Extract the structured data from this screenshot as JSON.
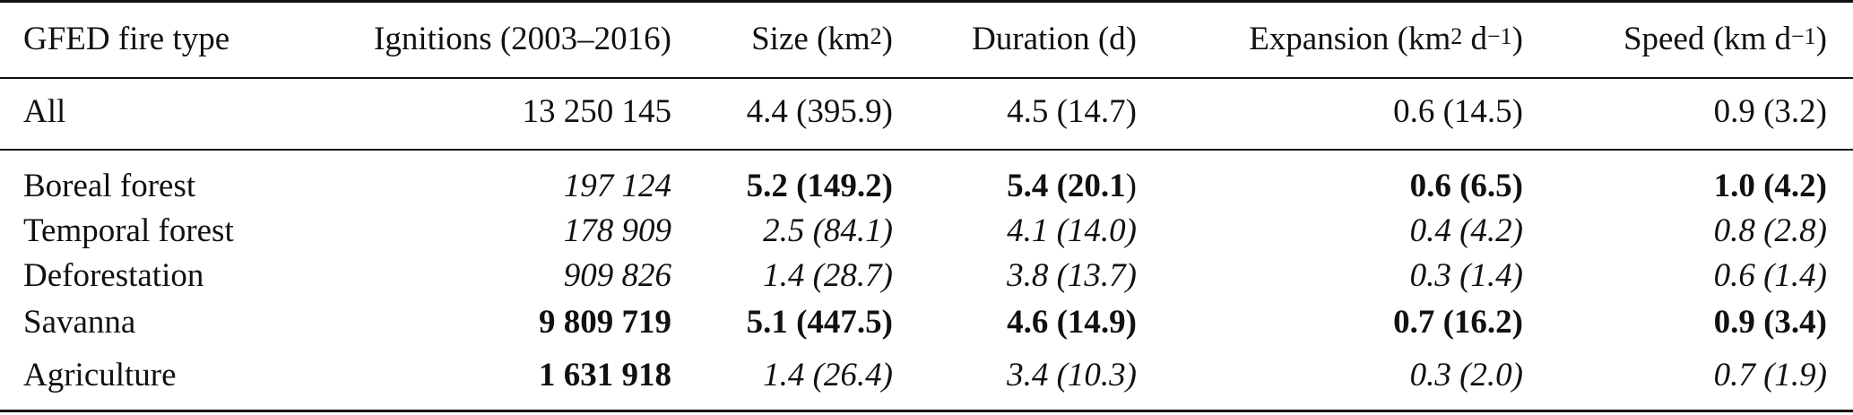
{
  "table": {
    "headers": {
      "fire_type": "GFED fire type",
      "ignitions": "Ignitions (2003–2016)",
      "size_prefix": "Size (km",
      "size_sup": "2",
      "size_suffix": ")",
      "duration": "Duration (d)",
      "expansion_prefix": "Expansion (km",
      "expansion_sup": "2",
      "expansion_mid": " d",
      "expansion_sup2": "−1",
      "expansion_suffix": ")",
      "speed_prefix": "Speed (km d",
      "speed_sup": "−1",
      "speed_suffix": ")"
    },
    "all_row": {
      "label": "All",
      "ignitions": "13 250 145",
      "size": "4.4 (395.9)",
      "duration": "4.5 (14.7)",
      "expansion": "0.6 (14.5)",
      "speed": "0.9 (3.2)"
    },
    "rows": [
      {
        "label": "Boreal forest",
        "ignitions": "197 124",
        "size": "5.2 (149.2)",
        "duration_a": "5.4 (20.1",
        "duration_b": ")",
        "expansion": "0.6 (6.5)",
        "speed": "1.0 (4.2)"
      },
      {
        "label": "Temporal forest",
        "ignitions": "178 909",
        "size": "2.5 (84.1)",
        "duration": "4.1 (14.0)",
        "expansion": "0.4 (4.2)",
        "speed": "0.8 (2.8)"
      },
      {
        "label": "Deforestation",
        "ignitions": "909 826",
        "size": "1.4 (28.7)",
        "duration": "3.8 (13.7)",
        "expansion": "0.3 (1.4)",
        "speed": "0.6 (1.4)"
      },
      {
        "label": "Savanna",
        "ignitions": "9 809 719",
        "size": "5.1 (447.5)",
        "duration": "4.6 (14.9)",
        "expansion": "0.7 (16.2)",
        "speed": "0.9 (3.4)"
      },
      {
        "label": "Agriculture",
        "ignitions": "1 631 918",
        "size": "1.4 (26.4)",
        "duration": "3.4 (10.3)",
        "expansion": "0.3 (2.0)",
        "speed": "0.7 (1.9)"
      }
    ]
  }
}
